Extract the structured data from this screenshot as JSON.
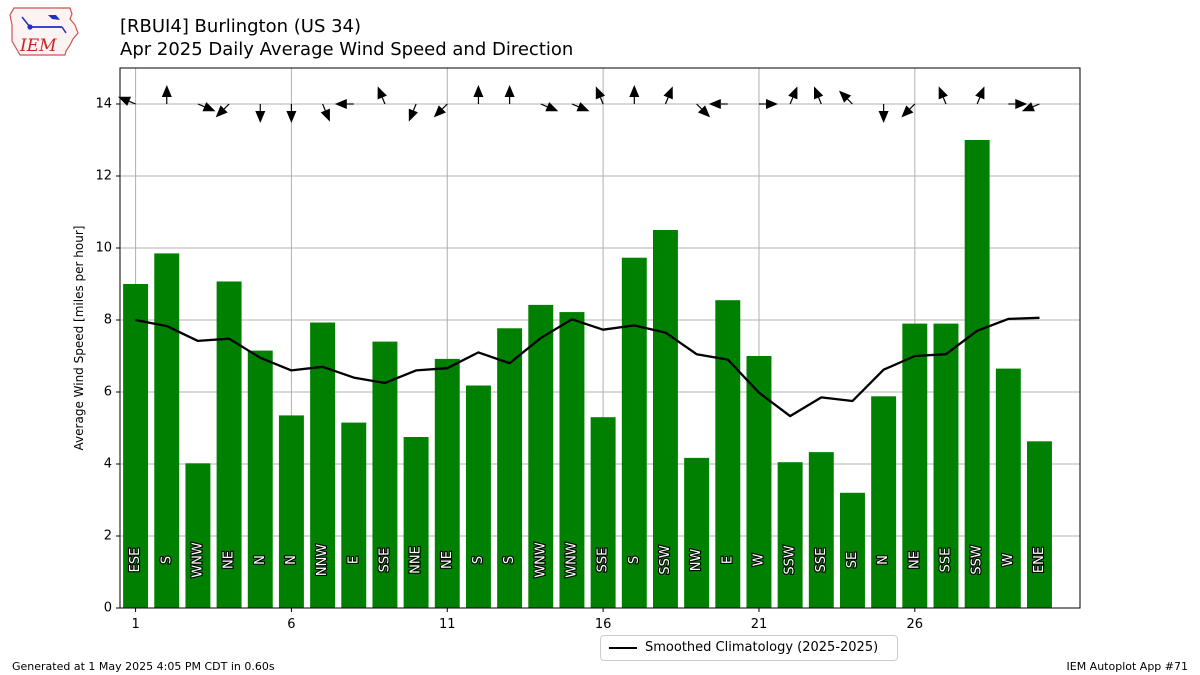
{
  "header": {
    "title_line1": "[RBUI4] Burlington (US 34)",
    "title_line2": "Apr 2025 Daily Average Wind Speed and Direction",
    "logo_text": "IEM"
  },
  "footer": {
    "generated": "Generated at 1 May 2025 4:05 PM CDT in 0.60s",
    "app": "IEM Autoplot App #71"
  },
  "legend": {
    "climatology_label": "Smoothed Climatology (2025-2025)"
  },
  "colors": {
    "bar": "#008000",
    "line": "#000000",
    "grid": "#b0b0b0"
  },
  "chart_data": {
    "type": "bar",
    "ylabel": "Average Wind Speed [miles per hour]",
    "xlabel": "",
    "xlim": [
      0.5,
      31.3
    ],
    "ylim": [
      0,
      15
    ],
    "xticks": [
      1,
      6,
      11,
      16,
      21,
      26
    ],
    "yticks": [
      0,
      2,
      4,
      6,
      8,
      10,
      12,
      14
    ],
    "grid": true,
    "legend_position": "bottom-center",
    "days": [
      1,
      2,
      3,
      4,
      5,
      6,
      7,
      8,
      9,
      10,
      11,
      12,
      13,
      14,
      15,
      16,
      17,
      18,
      19,
      20,
      21,
      22,
      23,
      24,
      25,
      26,
      27,
      28,
      29,
      30
    ],
    "speeds": [
      9.0,
      9.85,
      4.02,
      9.07,
      7.15,
      5.35,
      7.93,
      5.15,
      7.4,
      4.75,
      6.92,
      6.18,
      7.77,
      8.42,
      8.22,
      5.3,
      9.73,
      10.5,
      4.17,
      8.55,
      7.0,
      4.05,
      4.33,
      3.2,
      5.88,
      7.9,
      7.9,
      13.0,
      6.65,
      4.63
    ],
    "directions": [
      "ESE",
      "S",
      "WNW",
      "NE",
      "N",
      "N",
      "NNW",
      "E",
      "SSE",
      "NNE",
      "NE",
      "S",
      "S",
      "WNW",
      "WNW",
      "SSE",
      "S",
      "SSW",
      "NW",
      "E",
      "W",
      "SSW",
      "SSE",
      "SE",
      "N",
      "NE",
      "SSE",
      "SSW",
      "W",
      "ENE"
    ],
    "climatology": {
      "name": "Smoothed Climatology (2025-2025)",
      "values": [
        8.0,
        7.83,
        7.42,
        7.48,
        6.95,
        6.6,
        6.7,
        6.4,
        6.25,
        6.6,
        6.66,
        7.1,
        6.8,
        7.5,
        8.02,
        7.73,
        7.85,
        7.65,
        7.05,
        6.9,
        5.98,
        5.33,
        5.85,
        5.75,
        6.62,
        7.0,
        7.05,
        7.7,
        8.03,
        8.06
      ]
    },
    "arrow_y": 14
  }
}
